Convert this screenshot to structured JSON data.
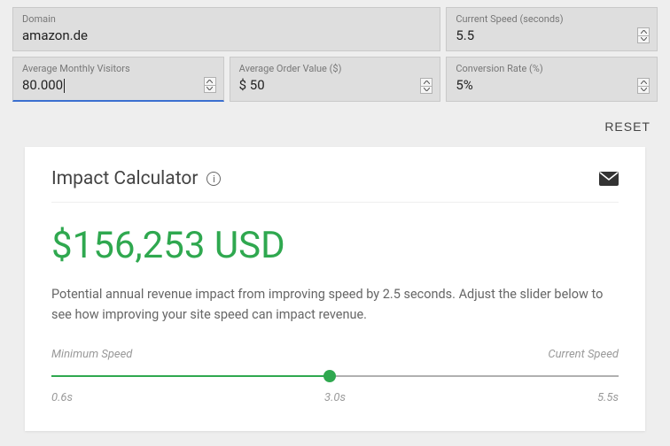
{
  "inputs": {
    "domain": {
      "label": "Domain",
      "value": "amazon.de"
    },
    "current_speed": {
      "label": "Current Speed (seconds)",
      "value": "5.5"
    },
    "visitors": {
      "label": "Average Monthly Visitors",
      "value": "80.000"
    },
    "order_value": {
      "label": "Average Order Value ($)",
      "value": "$ 50"
    },
    "conversion": {
      "label": "Conversion Rate (%)",
      "value": "5%"
    }
  },
  "reset_label": "RESET",
  "card": {
    "title": "Impact Calculator",
    "amount": "$156,253 USD",
    "amount_color": "#2fa84f",
    "description": "Potential annual revenue impact from improving speed by 2.5 seconds. Adjust the slider below to see how improving your site speed can impact revenue.",
    "slider": {
      "left_label": "Minimum Speed",
      "right_label": "Current Speed",
      "min_value": "0.6s",
      "mid_value": "3.0s",
      "max_value": "5.5s",
      "fill_percent": 49,
      "fill_color": "#2fa84f",
      "thumb_color": "#2fa84f",
      "track_color": "#b0b0b0"
    }
  },
  "colors": {
    "page_bg": "#eeeeee",
    "card_bg": "#ffffff",
    "input_bg": "#dedede",
    "active_underline": "#3b6fd0"
  }
}
